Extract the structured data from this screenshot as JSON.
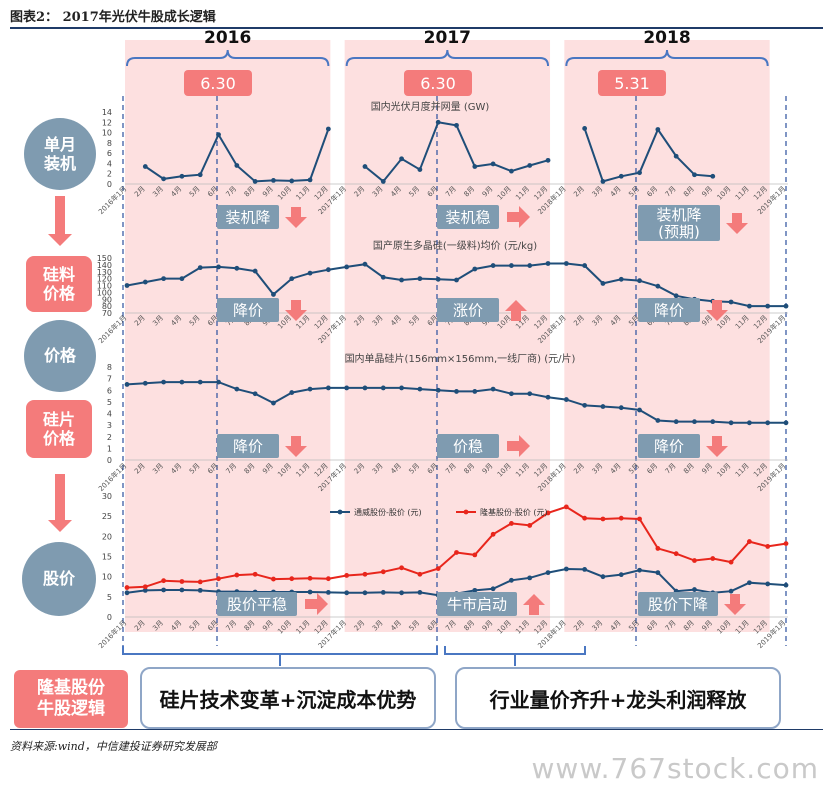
{
  "header": {
    "title": "图表2： 2017年光伏牛股成长逻辑"
  },
  "footer": {
    "source": "资料来源:wind，中信建投证券研究发展部",
    "watermark": "www.767stock.com"
  },
  "years": [
    "2016",
    "2017",
    "2018"
  ],
  "date_markers": [
    "6.30",
    "6.30",
    "5.31"
  ],
  "row_labels": {
    "install": "单月\n装机",
    "poly_price": "硅料\n价格",
    "price": "价格",
    "wafer_price": "硅片\n价格",
    "stock_price": "股价"
  },
  "annotations": {
    "install": [
      "装机降",
      "装机稳",
      "装机降\n(预期)"
    ],
    "poly": [
      "降价",
      "涨价",
      "降价"
    ],
    "wafer": [
      "降价",
      "价稳",
      "降价"
    ],
    "stock": [
      "股价平稳",
      "牛市启动",
      "股价下降"
    ]
  },
  "bottom": {
    "logic_label": "隆基股份\n牛股逻辑",
    "box1": "硅片技术变革+沉淀成本优势",
    "box2": "行业量价齐升+龙头利润释放"
  },
  "colors": {
    "navy": "#1f4e79",
    "red": "#e8261c",
    "band": "#fde0e0",
    "accent": "#f47b7b",
    "bracket": "#4a77c2"
  },
  "chart_data": [
    {
      "type": "line",
      "title": "国内光伏月度并网量 (GW)",
      "ylim": [
        0,
        14
      ],
      "yticks": [
        0,
        2,
        4,
        6,
        8,
        10,
        12,
        14
      ],
      "x": [
        "2016年1月",
        "2月",
        "3月",
        "4月",
        "5月",
        "6月",
        "7月",
        "8月",
        "9月",
        "10月",
        "11月",
        "12月",
        "2017年1月",
        "2月",
        "3月",
        "4月",
        "5月",
        "6月",
        "7月",
        "8月",
        "9月",
        "10月",
        "11月",
        "12月",
        "2018年1月",
        "2月",
        "3月",
        "4月",
        "5月",
        "6月",
        "7月",
        "8月",
        "9月",
        "10月",
        "11月",
        "12月",
        "2019年1月"
      ],
      "series": [
        {
          "values": [
            null,
            3.4,
            1.0,
            1.5,
            1.8,
            9.6,
            3.6,
            0.5,
            0.7,
            0.6,
            0.8,
            10.7,
            null,
            3.4,
            0.5,
            4.9,
            2.8,
            12.0,
            11.4,
            3.4,
            3.9,
            2.5,
            3.6,
            4.6,
            null,
            10.8,
            0.5,
            1.5,
            2.2,
            10.6,
            5.4,
            1.8,
            1.5,
            null,
            null,
            null,
            null
          ]
        }
      ]
    },
    {
      "type": "line",
      "title": "国产原生多晶硅(一级料)均价 (元/kg)",
      "ylim": [
        70,
        150
      ],
      "yticks": [
        70,
        80,
        90,
        100,
        110,
        120,
        130,
        140,
        150
      ],
      "x": [
        "2016年1月",
        "2月",
        "3月",
        "4月",
        "5月",
        "6月",
        "7月",
        "8月",
        "9月",
        "10月",
        "11月",
        "12月",
        "2017年1月",
        "2月",
        "3月",
        "4月",
        "5月",
        "6月",
        "7月",
        "8月",
        "9月",
        "10月",
        "11月",
        "12月",
        "2018年1月",
        "2月",
        "3月",
        "4月",
        "5月",
        "6月",
        "7月",
        "8月",
        "9月",
        "10月",
        "11月",
        "12月",
        "2019年1月"
      ],
      "series": [
        {
          "values": [
            110,
            115,
            120,
            120,
            136,
            137,
            135,
            131,
            97,
            120,
            128,
            133,
            137,
            141,
            122,
            118,
            120,
            119,
            118,
            134,
            139,
            139,
            139,
            142,
            142,
            139,
            113,
            119,
            117,
            109,
            95,
            90,
            87,
            86,
            80,
            80,
            80
          ]
        }
      ]
    },
    {
      "type": "line",
      "title": "国内单晶硅片(156mm×156mm,一线厂商) (元/片)",
      "ylim": [
        0,
        8
      ],
      "yticks": [
        0,
        1,
        2,
        3,
        4,
        5,
        6,
        7,
        8
      ],
      "x": [
        "2016年1月",
        "2月",
        "3月",
        "4月",
        "5月",
        "6月",
        "7月",
        "8月",
        "9月",
        "10月",
        "11月",
        "12月",
        "2017年1月",
        "2月",
        "3月",
        "4月",
        "5月",
        "6月",
        "7月",
        "8月",
        "9月",
        "10月",
        "11月",
        "12月",
        "2018年1月",
        "2月",
        "3月",
        "4月",
        "5月",
        "6月",
        "7月",
        "8月",
        "9月",
        "10月",
        "11月",
        "12月",
        "2019年1月"
      ],
      "series": [
        {
          "values": [
            6.5,
            6.6,
            6.7,
            6.7,
            6.7,
            6.7,
            6.1,
            5.7,
            4.9,
            5.8,
            6.1,
            6.2,
            6.2,
            6.2,
            6.2,
            6.2,
            6.1,
            6.0,
            5.9,
            5.9,
            6.1,
            5.7,
            5.7,
            5.4,
            5.2,
            4.7,
            4.6,
            4.5,
            4.3,
            3.4,
            3.3,
            3.3,
            3.3,
            3.2,
            3.2,
            3.2,
            3.2
          ]
        }
      ]
    },
    {
      "type": "line",
      "ylim": [
        0,
        30
      ],
      "yticks": [
        0,
        5,
        10,
        15,
        20,
        25,
        30
      ],
      "legend": "top",
      "x": [
        "2016年1月",
        "2月",
        "3月",
        "4月",
        "5月",
        "6月",
        "7月",
        "8月",
        "9月",
        "10月",
        "11月",
        "12月",
        "2017年1月",
        "2月",
        "3月",
        "4月",
        "5月",
        "6月",
        "7月",
        "8月",
        "9月",
        "10月",
        "11月",
        "12月",
        "2018年1月",
        "2月",
        "3月",
        "4月",
        "5月",
        "6月",
        "7月",
        "8月",
        "9月",
        "10月",
        "11月",
        "12月",
        "2019年1月"
      ],
      "series": [
        {
          "name": "通威股份-股价 (元)",
          "color": "#1f4e79",
          "values": [
            6.0,
            6.6,
            6.7,
            6.7,
            6.6,
            6.3,
            6.3,
            6.2,
            6.2,
            6.2,
            6.2,
            6.1,
            6.0,
            6.0,
            6.1,
            6.0,
            6.1,
            5.4,
            5.8,
            6.6,
            7.0,
            9.1,
            9.7,
            11.0,
            11.9,
            11.8,
            10.0,
            10.5,
            11.6,
            11.0,
            6.4,
            6.8,
            6.0,
            6.4,
            8.5,
            8.2,
            7.9
          ]
        },
        {
          "name": "隆基股份-股价 (元)",
          "color": "#e8261c",
          "values": [
            7.3,
            7.5,
            9.0,
            8.8,
            8.7,
            9.5,
            10.4,
            10.6,
            9.4,
            9.5,
            9.6,
            9.5,
            10.3,
            10.6,
            11.2,
            12.2,
            10.6,
            12.0,
            16.0,
            15.4,
            20.5,
            23.2,
            22.7,
            25.8,
            27.3,
            24.5,
            24.3,
            24.5,
            24.3,
            17.0,
            15.7,
            14.0,
            14.5,
            13.6,
            18.7,
            17.5,
            18.2
          ]
        }
      ]
    }
  ]
}
